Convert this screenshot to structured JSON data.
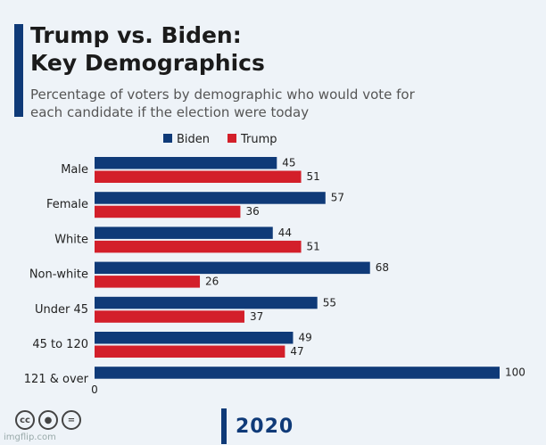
{
  "header": {
    "title_line1": "Trump vs. Biden:",
    "title_line2": "Key Demographics",
    "subtitle": "Percentage of voters by demographic who would vote for each candidate if the election were today"
  },
  "footer": {
    "watermark": "imgflip.com",
    "logo": "2020",
    "license_icons": [
      "cc",
      "by",
      "nd"
    ]
  },
  "colors": {
    "biden": "#0f3a78",
    "trump": "#d31f2a",
    "accent": "#0f3a78"
  },
  "chart_data": {
    "type": "bar",
    "orientation": "horizontal",
    "title": "Trump vs. Biden: Key Demographics",
    "subtitle": "Percentage of voters by demographic who would vote for each candidate if the election were today",
    "legend_position": "top",
    "categories": [
      "Male",
      "Female",
      "White",
      "Non-white",
      "Under 45",
      "45 to 120",
      "121 & over"
    ],
    "series": [
      {
        "name": "Biden",
        "color": "#0f3a78",
        "values": [
          45,
          57,
          44,
          68,
          55,
          49,
          100
        ]
      },
      {
        "name": "Trump",
        "color": "#d31f2a",
        "values": [
          51,
          36,
          51,
          26,
          37,
          47,
          0
        ]
      }
    ],
    "xlim": [
      0,
      100
    ],
    "axis_zero_label": "0"
  }
}
